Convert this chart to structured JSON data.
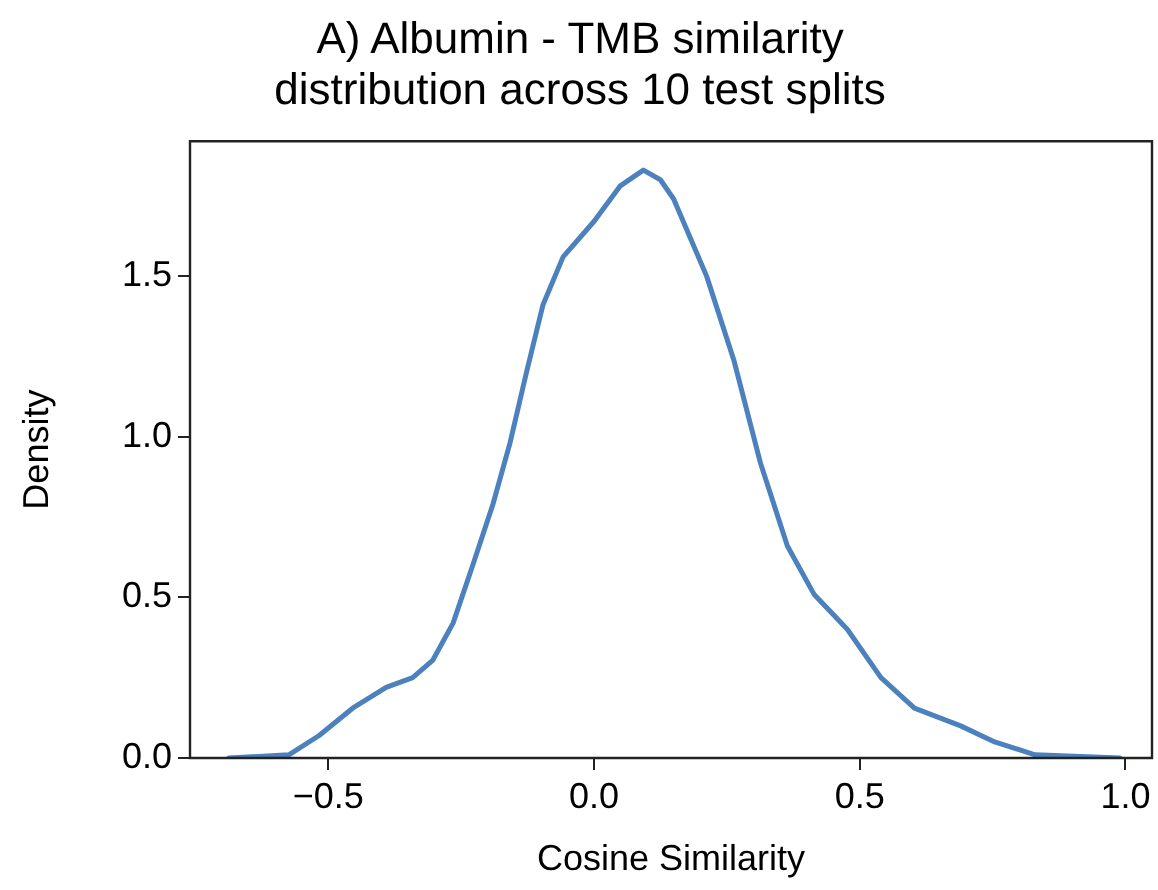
{
  "chart_data": {
    "type": "line",
    "title": "A) Albumin - TMB similarity\ndistribution across 10 test splits",
    "xlabel": "Cosine Similarity",
    "ylabel": "Density",
    "x": [
      -0.687,
      -0.574,
      -0.517,
      -0.454,
      -0.391,
      -0.341,
      -0.303,
      -0.265,
      -0.228,
      -0.19,
      -0.158,
      -0.127,
      -0.096,
      -0.058,
      0.0,
      0.049,
      0.093,
      0.125,
      0.15,
      0.212,
      0.263,
      0.313,
      0.364,
      0.414,
      0.477,
      0.54,
      0.603,
      0.69,
      0.754,
      0.83,
      0.99
    ],
    "series": [
      {
        "color": "#4c81bd",
        "values": [
          0,
          0.01,
          0.07,
          0.155,
          0.22,
          0.25,
          0.305,
          0.42,
          0.6,
          0.79,
          0.98,
          1.2,
          1.41,
          1.56,
          1.67,
          1.78,
          1.83,
          1.8,
          1.74,
          1.5,
          1.24,
          0.92,
          0.66,
          0.51,
          0.4,
          0.25,
          0.155,
          0.1,
          0.05,
          0.01,
          0
        ]
      }
    ],
    "xlim": [
      -0.76,
      1.05
    ],
    "ylim": [
      0,
      1.92
    ],
    "xticks": [
      {
        "value": -0.5,
        "label": "−0.5"
      },
      {
        "value": 0,
        "label": "0.0"
      },
      {
        "value": 0.5,
        "label": "0.5"
      },
      {
        "value": 1,
        "label": "1.0"
      }
    ],
    "yticks": [
      {
        "value": 0,
        "label": "0.0"
      },
      {
        "value": 0.5,
        "label": "0.5"
      },
      {
        "value": 1,
        "label": "1.0"
      },
      {
        "value": 1.5,
        "label": "1.5"
      }
    ],
    "grid": false,
    "legend": false,
    "marker": "none",
    "line_style": "solid"
  }
}
